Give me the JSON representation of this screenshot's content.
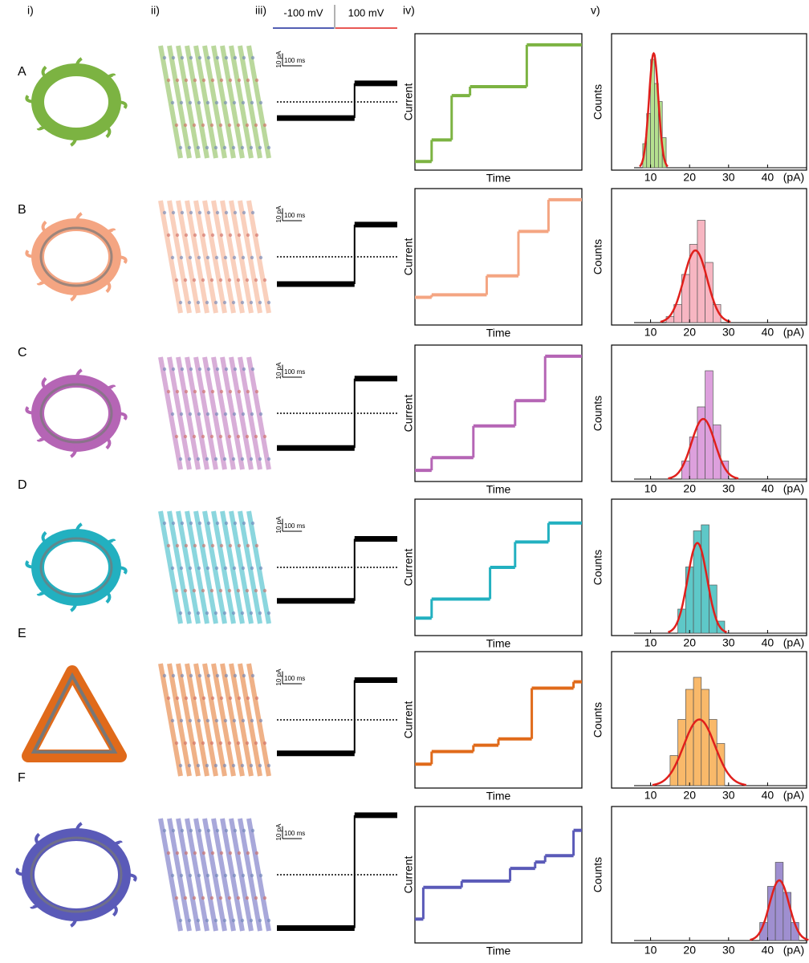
{
  "column_labels": [
    "i)",
    "ii)",
    "iii)",
    "iv)",
    "v)"
  ],
  "voltage_labels": [
    "-100 mV",
    "100 mV"
  ],
  "row_labels": [
    "A",
    "B",
    "C",
    "D",
    "E",
    "F"
  ],
  "chart_data": [
    {
      "type": "trace",
      "x": [
        -400,
        0
      ],
      "values": [
        -13,
        15
      ],
      "xlim": [
        -400,
        220
      ],
      "ylim": [
        -55,
        55
      ],
      "color": "#000000",
      "scale_bar": [
        {
          "value": 10,
          "label": "10 pA"
        },
        {
          "value": 100,
          "label": "100 ms"
        }
      ]
    },
    {
      "type": "step",
      "x": [
        0,
        10,
        22,
        33,
        67
      ],
      "values": [
        3,
        20,
        55,
        62,
        95
      ],
      "xlim": [
        0,
        100
      ],
      "ylim": [
        0,
        100
      ],
      "color": "#7cb342",
      "x_label": "Time",
      "y_label": "Current"
    },
    {
      "type": "histogram",
      "bins": [
        8,
        9,
        10,
        11,
        12,
        13,
        14
      ],
      "values": [
        20,
        45,
        90,
        70,
        55,
        25
      ],
      "color": "#b5e08f",
      "fit": {
        "mean": 10.8,
        "sd": 1.2,
        "peak": 95,
        "color": "#e0201c"
      },
      "xlim": [
        0,
        50
      ],
      "ylim": [
        0,
        100
      ],
      "xticks": [
        10,
        20,
        30,
        40
      ],
      "x_unit": "(pA)",
      "y_label": "Counts"
    },
    {
      "type": "trace",
      "x": [
        -400,
        0
      ],
      "values": [
        -22,
        26
      ],
      "xlim": [
        -400,
        220
      ],
      "ylim": [
        -55,
        55
      ],
      "color": "#000000",
      "scale_bar": [
        {
          "value": 10,
          "label": "10 pA"
        },
        {
          "value": 100,
          "label": "100 ms"
        }
      ]
    },
    {
      "type": "step",
      "x": [
        0,
        10,
        43,
        62,
        80
      ],
      "values": [
        18,
        20,
        35,
        70,
        95
      ],
      "xlim": [
        0,
        100
      ],
      "ylim": [
        0,
        100
      ],
      "color": "#f4a582",
      "x_label": "Time",
      "y_label": "Current"
    },
    {
      "type": "histogram",
      "bins": [
        14,
        16,
        18,
        20,
        22,
        24,
        26,
        28
      ],
      "values": [
        5,
        15,
        40,
        65,
        85,
        50,
        15
      ],
      "color": "#f7b6c2",
      "fit": {
        "mean": 21.5,
        "sd": 3,
        "peak": 60,
        "color": "#e0201c"
      },
      "xlim": [
        0,
        50
      ],
      "ylim": [
        0,
        100
      ],
      "xticks": [
        10,
        20,
        30,
        40
      ],
      "x_unit": "(pA)",
      "y_label": "Counts"
    },
    {
      "type": "trace",
      "x": [
        -400,
        0
      ],
      "values": [
        -28,
        28
      ],
      "xlim": [
        -400,
        220
      ],
      "ylim": [
        -55,
        55
      ],
      "color": "#000000",
      "scale_bar": [
        {
          "value": 10,
          "label": "10 pA"
        },
        {
          "value": 100,
          "label": "100 ms"
        }
      ]
    },
    {
      "type": "step",
      "x": [
        0,
        10,
        35,
        60,
        78
      ],
      "values": [
        5,
        15,
        40,
        60,
        95
      ],
      "xlim": [
        0,
        100
      ],
      "ylim": [
        0,
        100
      ],
      "color": "#b565b5",
      "x_label": "Time",
      "y_label": "Current"
    },
    {
      "type": "histogram",
      "bins": [
        18,
        20,
        22,
        24,
        26,
        28,
        30
      ],
      "values": [
        15,
        35,
        60,
        90,
        45,
        15
      ],
      "color": "#dda0dd",
      "fit": {
        "mean": 23.5,
        "sd": 3,
        "peak": 50,
        "color": "#e0201c"
      },
      "xlim": [
        0,
        50
      ],
      "ylim": [
        0,
        100
      ],
      "xticks": [
        10,
        20,
        30,
        40
      ],
      "x_unit": "(pA)",
      "y_label": "Counts"
    },
    {
      "type": "trace",
      "x": [
        -400,
        0
      ],
      "values": [
        -27,
        23
      ],
      "xlim": [
        -400,
        220
      ],
      "ylim": [
        -55,
        55
      ],
      "color": "#000000",
      "scale_bar": [
        {
          "value": 10,
          "label": "10 pA"
        },
        {
          "value": 100,
          "label": "100 ms"
        }
      ]
    },
    {
      "type": "step",
      "x": [
        0,
        10,
        45,
        60,
        80
      ],
      "values": [
        10,
        25,
        50,
        70,
        85
      ],
      "xlim": [
        0,
        100
      ],
      "ylim": [
        0,
        100
      ],
      "color": "#22b0c0",
      "x_label": "Time",
      "y_label": "Current"
    },
    {
      "type": "histogram",
      "bins": [
        17,
        19,
        21,
        23,
        25,
        27,
        29
      ],
      "values": [
        20,
        55,
        85,
        90,
        40,
        10
      ],
      "color": "#5ec8c8",
      "fit": {
        "mean": 22,
        "sd": 2.5,
        "peak": 75,
        "color": "#e0201c"
      },
      "xlim": [
        0,
        50
      ],
      "ylim": [
        0,
        100
      ],
      "xticks": [
        10,
        20,
        30,
        40
      ],
      "x_unit": "(pA)",
      "y_label": "Counts"
    },
    {
      "type": "trace",
      "x": [
        -400,
        0
      ],
      "values": [
        -27,
        32
      ],
      "xlim": [
        -400,
        220
      ],
      "ylim": [
        -55,
        55
      ],
      "color": "#000000",
      "scale_bar": [
        {
          "value": 10,
          "label": "10 pA"
        },
        {
          "value": 100,
          "label": "100 ms"
        }
      ]
    },
    {
      "type": "step",
      "x": [
        0,
        10,
        35,
        50,
        70,
        95
      ],
      "values": [
        15,
        25,
        30,
        35,
        75,
        80
      ],
      "xlim": [
        0,
        100
      ],
      "ylim": [
        0,
        100
      ],
      "color": "#e06a1a",
      "x_label": "Time",
      "y_label": "Current"
    },
    {
      "type": "histogram",
      "bins": [
        15,
        17,
        19,
        21,
        23,
        25,
        27,
        29
      ],
      "values": [
        25,
        55,
        80,
        90,
        80,
        55,
        35
      ],
      "color": "#f9b96a",
      "fit": {
        "mean": 22.5,
        "sd": 4,
        "peak": 55,
        "color": "#e0201c"
      },
      "xlim": [
        0,
        50
      ],
      "ylim": [
        0,
        100
      ],
      "xticks": [
        10,
        20,
        30,
        40
      ],
      "x_unit": "(pA)",
      "y_label": "Counts"
    },
    {
      "type": "trace",
      "x": [
        -400,
        0
      ],
      "values": [
        -43,
        48
      ],
      "xlim": [
        -400,
        220
      ],
      "ylim": [
        -55,
        55
      ],
      "color": "#000000",
      "scale_bar": [
        {
          "value": 10,
          "label": "10 pA"
        },
        {
          "value": 100,
          "label": "100 ms"
        }
      ]
    },
    {
      "type": "step",
      "x": [
        0,
        5,
        28,
        57,
        72,
        78,
        95
      ],
      "values": [
        15,
        40,
        45,
        55,
        60,
        65,
        85
      ],
      "xlim": [
        0,
        100
      ],
      "ylim": [
        0,
        100
      ],
      "color": "#5a5ab8",
      "x_label": "Time",
      "y_label": "Current"
    },
    {
      "type": "histogram",
      "bins": [
        38,
        40,
        42,
        44,
        46,
        48
      ],
      "values": [
        15,
        45,
        65,
        40,
        15
      ],
      "color": "#9f8fd0",
      "fit": {
        "mean": 43,
        "sd": 2.5,
        "peak": 50,
        "color": "#e0201c"
      },
      "xlim": [
        0,
        50
      ],
      "ylim": [
        0,
        100
      ],
      "xticks": [
        10,
        20,
        30,
        40
      ],
      "x_unit": "(pA)",
      "y_label": "Counts"
    }
  ]
}
